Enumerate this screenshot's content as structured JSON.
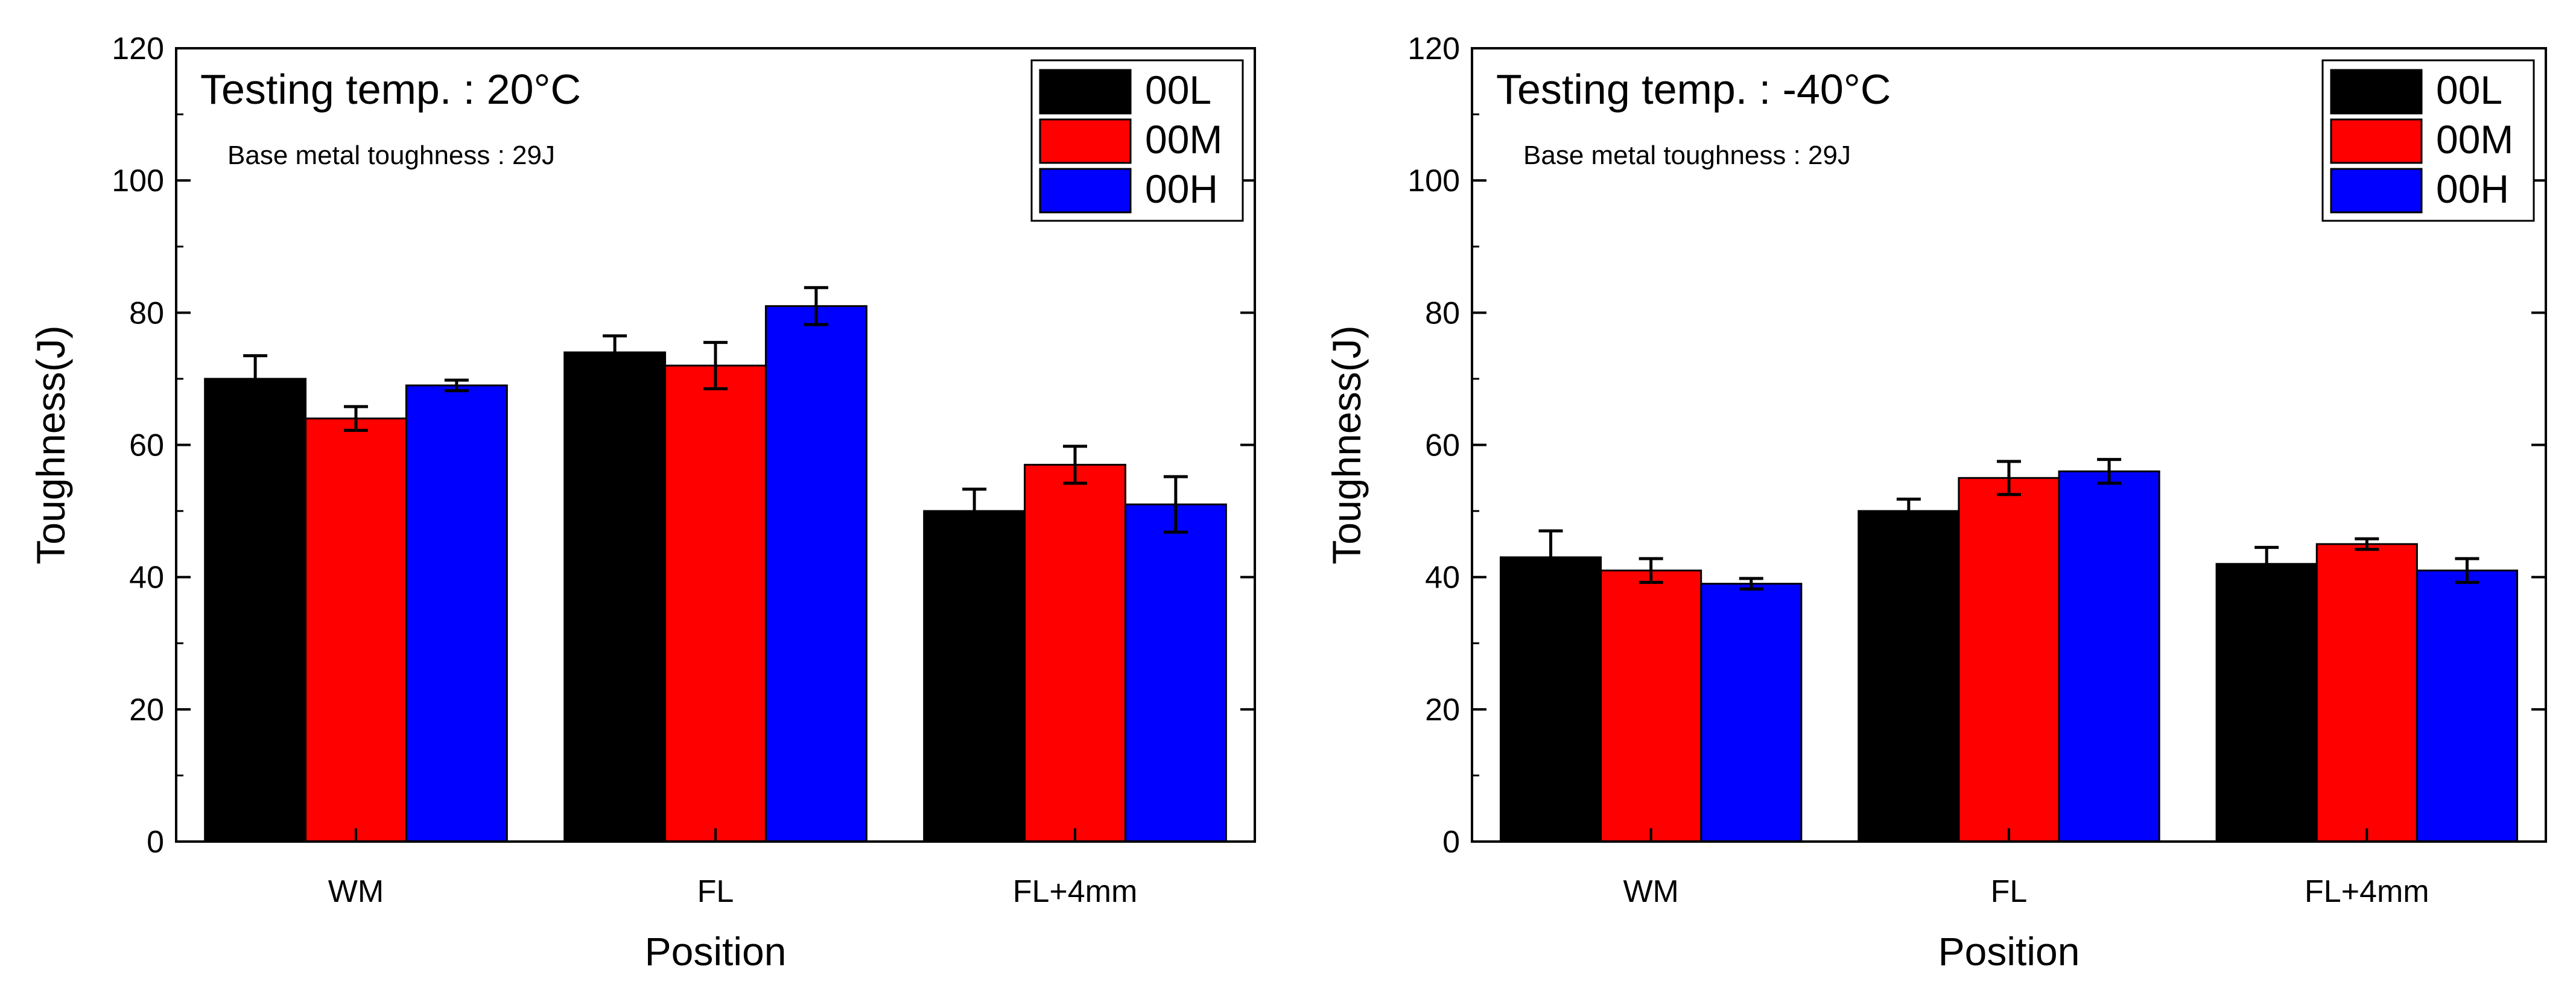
{
  "chart_data": [
    {
      "type": "bar",
      "title": "Testing temp. : 20°C",
      "annotation": "Base metal toughness : 29J",
      "xlabel": "Position",
      "ylabel": "Toughness(J)",
      "categories": [
        "WM",
        "FL",
        "FL+4mm"
      ],
      "ylim": [
        0,
        120
      ],
      "yticks": [
        0,
        20,
        40,
        60,
        80,
        100,
        120
      ],
      "legend_position": "top-right",
      "series": [
        {
          "name": "00L",
          "color": "#000000",
          "values": [
            70,
            74,
            50
          ],
          "errors": [
            3.5,
            2.5,
            3.3
          ]
        },
        {
          "name": "00M",
          "color": "#ff0000",
          "values": [
            64,
            72,
            57
          ],
          "errors": [
            1.8,
            3.5,
            2.8
          ]
        },
        {
          "name": "00H",
          "color": "#0000ff",
          "values": [
            69,
            81,
            51
          ],
          "errors": [
            0.8,
            2.8,
            4.2
          ]
        }
      ]
    },
    {
      "type": "bar",
      "title": "Testing temp. : -40°C",
      "annotation": "Base metal toughness : 29J",
      "xlabel": "Position",
      "ylabel": "Toughness(J)",
      "categories": [
        "WM",
        "FL",
        "FL+4mm"
      ],
      "ylim": [
        0,
        120
      ],
      "yticks": [
        0,
        20,
        40,
        60,
        80,
        100,
        120
      ],
      "legend_position": "top-right",
      "series": [
        {
          "name": "00L",
          "color": "#000000",
          "values": [
            43,
            50,
            42
          ],
          "errors": [
            4.0,
            1.8,
            2.5
          ]
        },
        {
          "name": "00M",
          "color": "#ff0000",
          "values": [
            41,
            55,
            45
          ],
          "errors": [
            1.8,
            2.5,
            0.8
          ]
        },
        {
          "name": "00H",
          "color": "#0000ff",
          "values": [
            39,
            56,
            41
          ],
          "errors": [
            0.8,
            1.8,
            1.8
          ]
        }
      ]
    }
  ]
}
